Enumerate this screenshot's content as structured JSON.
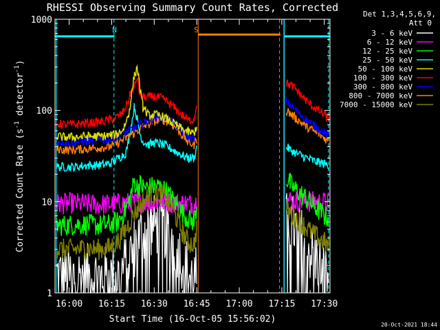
{
  "chart_data": {
    "type": "line",
    "title": "RHESSI Observing Summary Count Rates, Corrected",
    "xlabel": "Start Time (16-Oct-05 15:56:02)",
    "ylabel_main": "Corrected Count Rate (s",
    "ylabel_sup1": "-1",
    "ylabel_mid": " detector",
    "ylabel_sup2": "-1",
    "ylabel_end": ")",
    "yscale": "log",
    "xlim": [
      955,
      1052
    ],
    "ylim": [
      1,
      1000
    ],
    "x_tick_labels": [
      {
        "x": 960,
        "label": "16:00"
      },
      {
        "x": 975,
        "label": "16:15"
      },
      {
        "x": 990,
        "label": "16:30"
      },
      {
        "x": 1005,
        "label": "16:45"
      },
      {
        "x": 1020,
        "label": "17:00"
      },
      {
        "x": 1035,
        "label": "17:15"
      },
      {
        "x": 1050,
        "label": "17:30"
      }
    ],
    "y_tick_labels": [
      {
        "y": 1,
        "label": "1"
      },
      {
        "y": 10,
        "label": "10"
      },
      {
        "y": 100,
        "label": "100"
      },
      {
        "y": 1000,
        "label": "1000"
      }
    ],
    "legend": {
      "header": [
        "Det 1,3,4,5,6,9,",
        "Att 0"
      ],
      "placement": "right"
    },
    "annotations": [
      {
        "text": "N",
        "x": 976,
        "color": "#00ffff"
      },
      {
        "text": "S",
        "x": 1004.8,
        "color": "#ff8000"
      }
    ],
    "night_bars": [
      {
        "x0": 955,
        "x1": 976,
        "y": 650
      },
      {
        "x0": 1036,
        "x1": 1052,
        "y": 650
      }
    ],
    "saa_bar": {
      "x0": 1005.5,
      "x1": 1034.5,
      "y": 680
    },
    "vlines": [
      {
        "x": 955.5,
        "color": "#00ffff",
        "dash": false
      },
      {
        "x": 975.8,
        "color": "#00ffff",
        "dash": true
      },
      {
        "x": 1005.5,
        "color": "#ff8000",
        "dash": false
      },
      {
        "x": 1034.2,
        "color": "#ff8000",
        "dash": true
      },
      {
        "x": 1035.6,
        "color": "#ff00ff",
        "dash": false
      },
      {
        "x": 1035.9,
        "color": "#00ffff",
        "dash": false
      },
      {
        "x": 1051.5,
        "color": "#00ffff",
        "dash": true
      }
    ],
    "series": [
      {
        "name": "3 - 6 keV",
        "color": "#ffffff",
        "points": [
          [
            955.5,
            1.6
          ],
          [
            958,
            1.5
          ],
          [
            962,
            1.5
          ],
          [
            966,
            1.6
          ],
          [
            970,
            1.5
          ],
          [
            974,
            1.5
          ],
          [
            977,
            1.5
          ],
          [
            979,
            1.8
          ],
          [
            981,
            2.4
          ],
          [
            983,
            3.2
          ],
          [
            985,
            4.2
          ],
          [
            987,
            5.0
          ],
          [
            989,
            5.4
          ],
          [
            991,
            5.6
          ],
          [
            993,
            5.4
          ],
          [
            995,
            4.6
          ],
          [
            997,
            3.6
          ],
          [
            999,
            2.7
          ],
          [
            1001,
            2.0
          ],
          [
            1003,
            1.5
          ],
          [
            1005,
            1.5
          ],
          [
            1036.5,
            6.4
          ],
          [
            1038,
            6.0
          ],
          [
            1040,
            5.0
          ],
          [
            1042,
            4.0
          ],
          [
            1044,
            3.2
          ],
          [
            1046,
            2.6
          ],
          [
            1048,
            2.2
          ],
          [
            1050,
            1.6
          ],
          [
            1051.5,
            1.4
          ]
        ]
      },
      {
        "name": "6 - 12 keV",
        "color": "#ff00ff",
        "points": [
          [
            955.5,
            9.5
          ],
          [
            958,
            9.5
          ],
          [
            962,
            9.6
          ],
          [
            966,
            9.4
          ],
          [
            970,
            9.3
          ],
          [
            974,
            9.4
          ],
          [
            977,
            9.5
          ],
          [
            980,
            9.7
          ],
          [
            984,
            9.8
          ],
          [
            988,
            9.9
          ],
          [
            992,
            10.0
          ],
          [
            996,
            9.8
          ],
          [
            1000,
            9.6
          ],
          [
            1003,
            9.5
          ],
          [
            1005,
            9.8
          ],
          [
            1036.5,
            10.6
          ],
          [
            1040,
            10.2
          ],
          [
            1044,
            10.0
          ],
          [
            1048,
            9.9
          ],
          [
            1051.5,
            9.8
          ]
        ]
      },
      {
        "name": "12 - 25 keV",
        "color": "#00ff00",
        "points": [
          [
            955.5,
            5.5
          ],
          [
            958,
            5.5
          ],
          [
            962,
            5.6
          ],
          [
            966,
            5.6
          ],
          [
            970,
            5.5
          ],
          [
            974,
            5.6
          ],
          [
            977,
            6.0
          ],
          [
            979,
            7.2
          ],
          [
            981,
            9.8
          ],
          [
            982,
            12.8
          ],
          [
            983,
            16.5
          ],
          [
            984,
            14.5
          ],
          [
            985,
            15.5
          ],
          [
            986,
            14.5
          ],
          [
            988,
            14.2
          ],
          [
            990,
            14.8
          ],
          [
            992,
            14.5
          ],
          [
            994,
            13.2
          ],
          [
            996,
            11.0
          ],
          [
            998,
            9.2
          ],
          [
            1000,
            7.6
          ],
          [
            1002,
            6.4
          ],
          [
            1004,
            6.0
          ],
          [
            1005.2,
            9.8
          ],
          [
            1036.5,
            18.0
          ],
          [
            1038,
            15.5
          ],
          [
            1040,
            13.5
          ],
          [
            1042,
            12.0
          ],
          [
            1044,
            10.6
          ],
          [
            1046,
            9.2
          ],
          [
            1048,
            8.0
          ],
          [
            1050,
            7.0
          ],
          [
            1051.5,
            6.6
          ]
        ]
      },
      {
        "name": "25 - 50 keV",
        "color": "#00ffff",
        "points": [
          [
            955.5,
            24
          ],
          [
            958,
            24
          ],
          [
            962,
            24
          ],
          [
            966,
            25
          ],
          [
            970,
            25
          ],
          [
            974,
            26
          ],
          [
            976,
            28
          ],
          [
            978,
            31
          ],
          [
            980,
            34
          ],
          [
            981,
            48
          ],
          [
            982,
            70
          ],
          [
            983,
            110
          ],
          [
            984,
            80
          ],
          [
            985,
            55
          ],
          [
            986,
            46
          ],
          [
            988,
            42
          ],
          [
            990,
            44
          ],
          [
            992,
            43
          ],
          [
            994,
            41
          ],
          [
            996,
            38
          ],
          [
            998,
            35
          ],
          [
            1000,
            32
          ],
          [
            1002,
            30
          ],
          [
            1004,
            30
          ],
          [
            1005.2,
            42
          ],
          [
            1036.5,
            40
          ],
          [
            1038,
            37
          ],
          [
            1040,
            34
          ],
          [
            1042,
            32
          ],
          [
            1044,
            30
          ],
          [
            1046,
            28
          ],
          [
            1048,
            27
          ],
          [
            1050,
            26
          ],
          [
            1051.5,
            25
          ]
        ]
      },
      {
        "name": "50 - 100 keV",
        "color": "#e0e000",
        "points": [
          [
            955.5,
            52
          ],
          [
            958,
            51
          ],
          [
            962,
            51
          ],
          [
            966,
            52
          ],
          [
            970,
            52
          ],
          [
            974,
            53
          ],
          [
            977,
            55
          ],
          [
            979,
            62
          ],
          [
            981,
            90
          ],
          [
            982,
            150
          ],
          [
            983,
            240
          ],
          [
            984,
            300
          ],
          [
            985,
            170
          ],
          [
            986,
            110
          ],
          [
            988,
            88
          ],
          [
            990,
            90
          ],
          [
            992,
            88
          ],
          [
            994,
            82
          ],
          [
            996,
            75
          ],
          [
            998,
            68
          ],
          [
            1000,
            62
          ],
          [
            1002,
            58
          ],
          [
            1004,
            56
          ],
          [
            1005.2,
            70
          ]
        ]
      },
      {
        "name": "100 - 300 keV",
        "color": "#ff0000",
        "points": [
          [
            955.5,
            72
          ],
          [
            958,
            70
          ],
          [
            962,
            70
          ],
          [
            966,
            73
          ],
          [
            970,
            74
          ],
          [
            974,
            78
          ],
          [
            977,
            85
          ],
          [
            979,
            95
          ],
          [
            981,
            130
          ],
          [
            982,
            165
          ],
          [
            983,
            180
          ],
          [
            984,
            230
          ],
          [
            985,
            145
          ],
          [
            986,
            140
          ],
          [
            988,
            140
          ],
          [
            990,
            142
          ],
          [
            992,
            138
          ],
          [
            994,
            128
          ],
          [
            996,
            115
          ],
          [
            998,
            100
          ],
          [
            1000,
            88
          ],
          [
            1002,
            78
          ],
          [
            1004,
            80
          ],
          [
            1005.2,
            130
          ],
          [
            1036.5,
            200
          ],
          [
            1038,
            190
          ],
          [
            1040,
            170
          ],
          [
            1042,
            145
          ],
          [
            1044,
            125
          ],
          [
            1046,
            110
          ],
          [
            1048,
            100
          ],
          [
            1050,
            90
          ],
          [
            1051.5,
            80
          ]
        ]
      },
      {
        "name": "300 - 800 keV",
        "color": "#0000ff",
        "points": [
          [
            955.5,
            46
          ],
          [
            958,
            45
          ],
          [
            962,
            45
          ],
          [
            966,
            46
          ],
          [
            970,
            47
          ],
          [
            974,
            48
          ],
          [
            977,
            52
          ],
          [
            980,
            58
          ],
          [
            983,
            64
          ],
          [
            986,
            72
          ],
          [
            989,
            80
          ],
          [
            992,
            85
          ],
          [
            994,
            83
          ],
          [
            996,
            77
          ],
          [
            998,
            68
          ],
          [
            1000,
            58
          ],
          [
            1002,
            52
          ],
          [
            1004,
            50
          ],
          [
            1005.2,
            60
          ],
          [
            1036.5,
            125
          ],
          [
            1038,
            115
          ],
          [
            1040,
            100
          ],
          [
            1042,
            88
          ],
          [
            1044,
            78
          ],
          [
            1046,
            70
          ],
          [
            1048,
            63
          ],
          [
            1050,
            57
          ],
          [
            1051.5,
            52
          ]
        ]
      },
      {
        "name": "800 - 7000 keV",
        "color": "#ff8000",
        "points": [
          [
            955.5,
            38
          ],
          [
            958,
            37
          ],
          [
            962,
            37
          ],
          [
            966,
            38
          ],
          [
            970,
            39
          ],
          [
            974,
            40
          ],
          [
            977,
            44
          ],
          [
            980,
            50
          ],
          [
            983,
            57
          ],
          [
            986,
            66
          ],
          [
            989,
            74
          ],
          [
            992,
            80
          ],
          [
            994,
            78
          ],
          [
            996,
            72
          ],
          [
            998,
            63
          ],
          [
            1000,
            53
          ],
          [
            1002,
            45
          ],
          [
            1004,
            42
          ],
          [
            1005.2,
            50
          ],
          [
            1036.5,
            100
          ],
          [
            1038,
            92
          ],
          [
            1040,
            82
          ],
          [
            1042,
            73
          ],
          [
            1044,
            66
          ],
          [
            1046,
            60
          ],
          [
            1048,
            55
          ],
          [
            1050,
            50
          ],
          [
            1051.5,
            46
          ]
        ]
      },
      {
        "name": "7000 - 15000 keV",
        "color": "#808000",
        "points": [
          [
            955.5,
            3.0
          ],
          [
            958,
            3.0
          ],
          [
            962,
            3.0
          ],
          [
            966,
            3.1
          ],
          [
            970,
            3.0
          ],
          [
            974,
            3.1
          ],
          [
            977,
            3.6
          ],
          [
            980,
            5.0
          ],
          [
            983,
            7.4
          ],
          [
            986,
            10.0
          ],
          [
            989,
            12.0
          ],
          [
            992,
            12.4
          ],
          [
            994,
            11.0
          ],
          [
            996,
            8.8
          ],
          [
            998,
            6.4
          ],
          [
            1000,
            4.6
          ],
          [
            1002,
            3.6
          ],
          [
            1004,
            3.4
          ],
          [
            1005.2,
            5.6
          ],
          [
            1036.5,
            8.4
          ],
          [
            1038,
            7.5
          ],
          [
            1040,
            6.6
          ],
          [
            1042,
            5.8
          ],
          [
            1044,
            5.0
          ],
          [
            1046,
            4.4
          ],
          [
            1048,
            4.0
          ],
          [
            1050,
            3.6
          ],
          [
            1051.5,
            3.2
          ]
        ]
      }
    ]
  },
  "footer": {
    "timestamp": "20-Oct-2021 18:44"
  }
}
